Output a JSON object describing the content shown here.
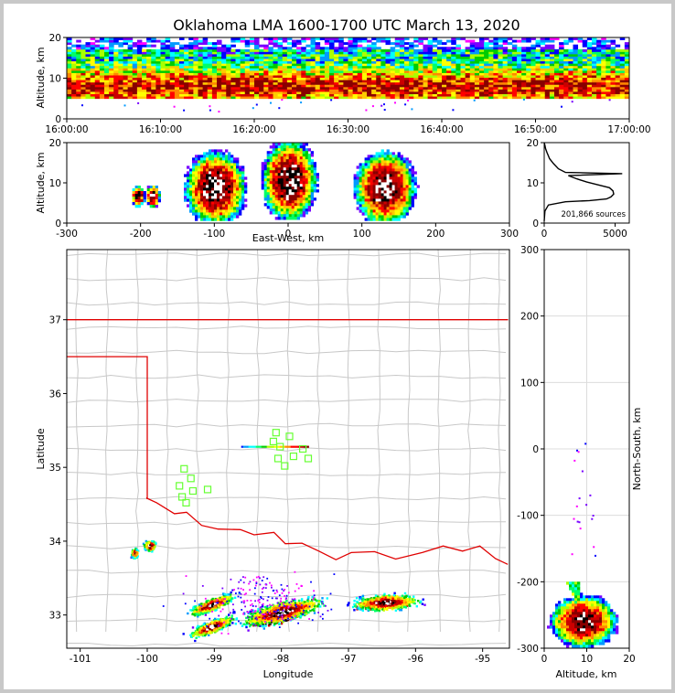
{
  "chart_data": [
    {
      "type": "heatmap",
      "panel": "altitude-time",
      "title": "Oklahoma LMA 1600-1700 UTC March 13, 2020",
      "ylabel": "Altitude, km",
      "xlabel": "",
      "ylim": [
        0,
        20
      ],
      "yticks": [
        0,
        10,
        20
      ],
      "xlim": [
        "16:00:00",
        "17:00:00"
      ],
      "xticks": [
        "16:00:00",
        "16:10:00",
        "16:20:00",
        "16:30:00",
        "16:40:00",
        "16:50:00",
        "17:00:00"
      ],
      "source_altitude_range_km": [
        5,
        20
      ]
    },
    {
      "type": "heatmap",
      "panel": "altitude-eastwest",
      "xlabel": "East-West, km",
      "ylabel": "Altitude, km",
      "xlim": [
        -300,
        300
      ],
      "ylim": [
        0,
        20
      ],
      "xticks": [
        -300,
        -200,
        -100,
        0,
        100,
        200,
        300
      ],
      "yticks": [
        0,
        10,
        20
      ],
      "clusters": [
        {
          "x": -205,
          "z": 7,
          "w": 10,
          "h": 3
        },
        {
          "x": -185,
          "z": 7,
          "w": 10,
          "h": 3
        },
        {
          "x": -100,
          "z": 9,
          "w": 45,
          "h": 10
        },
        {
          "x": 0,
          "z": 11,
          "w": 40,
          "h": 11
        },
        {
          "x": 130,
          "z": 9,
          "w": 45,
          "h": 10
        }
      ]
    },
    {
      "type": "line",
      "panel": "altitude-histogram",
      "ylim": [
        0,
        20
      ],
      "xlim": [
        0,
        6000
      ],
      "xticks": [
        0,
        5000
      ],
      "yticks": [
        0,
        10,
        20
      ],
      "annotation": "201,866 sources",
      "profile": [
        [
          0,
          0.5
        ],
        [
          50,
          3
        ],
        [
          300,
          4.5
        ],
        [
          1500,
          5.3
        ],
        [
          3200,
          5.6
        ],
        [
          4400,
          6
        ],
        [
          4700,
          6.5
        ],
        [
          4900,
          7.2
        ],
        [
          4850,
          8
        ],
        [
          4600,
          8.8
        ],
        [
          3800,
          9.5
        ],
        [
          3000,
          10.2
        ],
        [
          2300,
          11
        ],
        [
          1700,
          11.8
        ],
        [
          5500,
          12.3
        ],
        [
          1500,
          12.6
        ],
        [
          1000,
          13.5
        ],
        [
          650,
          14.8
        ],
        [
          380,
          16
        ],
        [
          200,
          17.5
        ],
        [
          100,
          18.5
        ],
        [
          40,
          19.5
        ],
        [
          0,
          20
        ]
      ]
    },
    {
      "type": "heatmap",
      "panel": "plan-view",
      "xlabel": "Longitude",
      "ylabel": "Latitude",
      "xlim": [
        -101.2,
        -94.6
      ],
      "ylim": [
        32.55,
        37.95
      ],
      "xticks": [
        -101,
        -100,
        -99,
        -98,
        -97,
        -96,
        -95
      ],
      "yticks": [
        33,
        34,
        35,
        36,
        37
      ],
      "stations": [
        [
          -98.08,
          35.47
        ],
        [
          -97.88,
          35.42
        ],
        [
          -98.12,
          35.35
        ],
        [
          -98.02,
          35.28
        ],
        [
          -97.68,
          35.25
        ],
        [
          -98.05,
          35.12
        ],
        [
          -97.82,
          35.15
        ],
        [
          -97.6,
          35.12
        ],
        [
          -97.95,
          35.02
        ],
        [
          -99.45,
          34.98
        ],
        [
          -99.35,
          34.85
        ],
        [
          -99.52,
          34.75
        ],
        [
          -99.32,
          34.68
        ],
        [
          -99.1,
          34.7
        ],
        [
          -99.48,
          34.6
        ],
        [
          -99.42,
          34.52
        ]
      ],
      "storms": [
        {
          "lon": -98.05,
          "lat": 32.97,
          "len": 0.95,
          "wid": 0.06,
          "angle": -14,
          "core": true
        },
        {
          "lon": -98.0,
          "lat": 33.05,
          "len": 1.4,
          "wid": 0.2,
          "angle": -14,
          "core": false
        },
        {
          "lon": -96.5,
          "lat": 33.17,
          "len": 0.9,
          "wid": 0.07,
          "angle": -3,
          "core": true
        },
        {
          "lon": -96.45,
          "lat": 33.18,
          "len": 1.1,
          "wid": 0.14,
          "angle": -3,
          "core": false
        },
        {
          "lon": -99.05,
          "lat": 33.15,
          "len": 0.8,
          "wid": 0.08,
          "angle": -22,
          "core": false
        },
        {
          "lon": -99.05,
          "lat": 32.85,
          "len": 0.8,
          "wid": 0.08,
          "angle": -22,
          "core": false
        },
        {
          "lon": -99.97,
          "lat": 33.95,
          "len": 0.2,
          "wid": 0.06,
          "angle": 0,
          "core": false
        },
        {
          "lon": -100.2,
          "lat": 33.85,
          "len": 0.12,
          "wid": 0.05,
          "angle": 0,
          "core": false
        }
      ],
      "segment": {
        "lon1": -98.6,
        "lon2": -97.6,
        "lat": 35.28
      }
    },
    {
      "type": "heatmap",
      "panel": "northsouth-altitude",
      "xlabel": "Altitude, km",
      "ylabel": "North-South, km",
      "xlim": [
        0,
        20
      ],
      "ylim": [
        -300,
        300
      ],
      "xticks": [
        0,
        10,
        20
      ],
      "yticks": [
        -300,
        -200,
        -100,
        0,
        100,
        200,
        300
      ]
    }
  ]
}
